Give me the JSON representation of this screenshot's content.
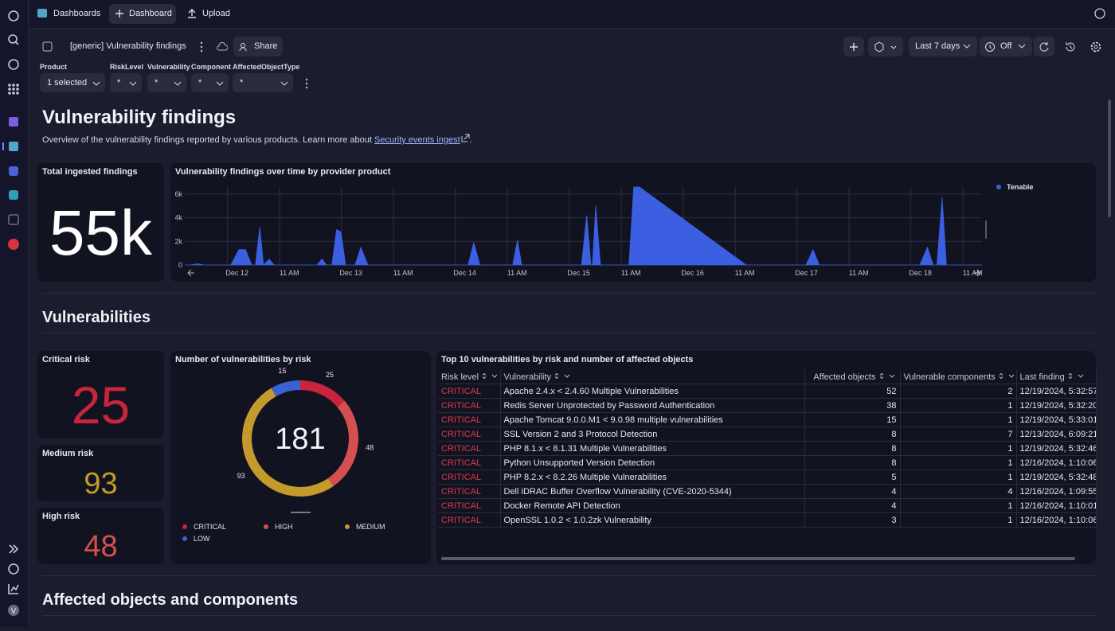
{
  "sidebar": {
    "avatar": "V"
  },
  "topbar": {
    "tabs": [
      "Dashboards",
      "Dashboard",
      "Upload"
    ]
  },
  "toolbar": {
    "title": "[generic] Vulnerability findings",
    "share": "Share",
    "timeframe": "Last 7 days",
    "refresh": "Off"
  },
  "filters": [
    {
      "label": "Product",
      "value": "1 selected"
    },
    {
      "label": "RiskLevel",
      "value": "*"
    },
    {
      "label": "Vulnerability",
      "value": "*"
    },
    {
      "label": "Component",
      "value": "*"
    },
    {
      "label": "AffectedObjectType",
      "value": "*"
    }
  ],
  "header": {
    "title": "Vulnerability findings",
    "description": "Overview of the vulnerability findings reported by various products. Learn more about",
    "link": "Security events ingest",
    "description_end": "."
  },
  "sections": [
    "Vulnerabilities",
    "Affected objects and components"
  ],
  "total_tile": {
    "title": "Total ingested findings",
    "value": "55k"
  },
  "findings_chart": {
    "type": "area",
    "title": "Vulnerability findings over time by provider product",
    "xlim": [
      15,
      183
    ],
    "ylim": [
      0,
      6600
    ],
    "xticks": [
      {
        "value": 24,
        "label": "Dec 12"
      },
      {
        "value": 35,
        "label": "11 AM"
      },
      {
        "value": 48,
        "label": "Dec 13"
      },
      {
        "value": 59,
        "label": "11 AM"
      },
      {
        "value": 72,
        "label": "Dec 14"
      },
      {
        "value": 83,
        "label": "11 AM"
      },
      {
        "value": 96,
        "label": "Dec 15"
      },
      {
        "value": 107,
        "label": "11 AM"
      },
      {
        "value": 120,
        "label": "Dec 16"
      },
      {
        "value": 131,
        "label": "11 AM"
      },
      {
        "value": 144,
        "label": "Dec 17"
      },
      {
        "value": 155,
        "label": "11 AM"
      },
      {
        "value": 168,
        "label": "Dec 18"
      },
      {
        "value": 179,
        "label": "11 AM"
      }
    ],
    "yticks": [
      0,
      {
        "value": 2000,
        "label": "2k"
      },
      {
        "value": 4000,
        "label": "4k"
      },
      {
        "value": 6000,
        "label": "6k"
      }
    ],
    "grid": true,
    "legend": "right",
    "x": [
      15,
      16.3,
      17.7,
      19,
      24.7,
      26.4,
      27.8,
      29.1,
      29.9,
      30.8,
      31.6,
      32.8,
      33.8,
      42.9,
      43.9,
      44.9,
      46,
      47,
      47.9,
      48.9,
      50.9,
      52.1,
      53.6,
      74.7,
      75.9,
      77.2,
      84.1,
      85.1,
      86,
      98.6,
      99.7,
      100.6,
      100.9,
      101.6,
      102.6,
      108.6,
      109.6,
      110.8,
      133.3,
      145.9,
      147.4,
      148.7,
      169.9,
      171.5,
      172.7,
      173.5,
      174.6,
      175.5,
      183
    ],
    "series": [
      {
        "name": "Tenable",
        "color": "#3b5fe0",
        "values": [
          0,
          0,
          100,
          0,
          0,
          1300,
          1300,
          0,
          0,
          3200,
          0,
          500,
          0,
          0,
          500,
          0,
          0,
          3000,
          2800,
          0,
          0,
          1500,
          0,
          0,
          1900,
          0,
          0,
          2100,
          0,
          0,
          4200,
          0,
          0,
          5000,
          0,
          0,
          6600,
          6600,
          0,
          0,
          1300,
          0,
          0,
          1500,
          0,
          0,
          5700,
          0,
          0
        ]
      }
    ]
  },
  "risk_tiles": [
    {
      "title": "Critical risk",
      "value": 25,
      "color": "#c8243b"
    },
    {
      "title": "Medium risk",
      "value": 93,
      "color": "#c49a2c"
    },
    {
      "title": "High risk",
      "value": 48,
      "color": "#d64f50"
    }
  ],
  "risk_chart": {
    "type": "donut",
    "title": "Number of vulnerabilities by risk",
    "categories": [
      "CRITICAL",
      "HIGH",
      "MEDIUM",
      "LOW"
    ],
    "values": [
      25,
      48,
      93,
      15
    ],
    "colors": [
      "#c8243b",
      "#d64f50",
      "#c49a2c",
      "#3a62d4"
    ],
    "total": 181
  },
  "top_table": {
    "title": "Top 10 vulnerabilities by risk and number of affected objects",
    "columns": [
      "Risk level",
      "Vulnerability",
      "Affected objects",
      "Vulnerable components",
      "Last finding"
    ],
    "rows": [
      [
        "CRITICAL",
        "Apache 2.4.x < 2.4.60 Multiple Vulnerabilities",
        52,
        2,
        "12/19/2024, 5:32:57"
      ],
      [
        "CRITICAL",
        "Redis Server Unprotected by Password Authentication",
        38,
        1,
        "12/19/2024, 5:32:20"
      ],
      [
        "CRITICAL",
        "Apache Tomcat 9.0.0.M1 < 9.0.98 multiple vulnerabilities",
        15,
        1,
        "12/19/2024, 5:33:01"
      ],
      [
        "CRITICAL",
        "SSL Version 2 and 3 Protocol Detection",
        8,
        7,
        "12/13/2024, 6:09:21"
      ],
      [
        "CRITICAL",
        "PHP 8.1.x < 8.1.31 Multiple Vulnerabilities",
        8,
        1,
        "12/19/2024, 5:32:46"
      ],
      [
        "CRITICAL",
        "Python Unsupported Version Detection",
        8,
        1,
        "12/16/2024, 1:10:06"
      ],
      [
        "CRITICAL",
        "PHP 8.2.x < 8.2.26 Multiple Vulnerabilities",
        5,
        1,
        "12/19/2024, 5:32:48"
      ],
      [
        "CRITICAL",
        "Dell iDRAC Buffer Overflow Vulnerability (CVE-2020-5344)",
        4,
        4,
        "12/16/2024, 1:09:55"
      ],
      [
        "CRITICAL",
        "Docker Remote API Detection",
        4,
        1,
        "12/16/2024, 1:10:01"
      ],
      [
        "CRITICAL",
        "OpenSSL 1.0.2 < 1.0.2zk Vulnerability",
        3,
        1,
        "12/16/2024, 1:10:06"
      ]
    ]
  }
}
